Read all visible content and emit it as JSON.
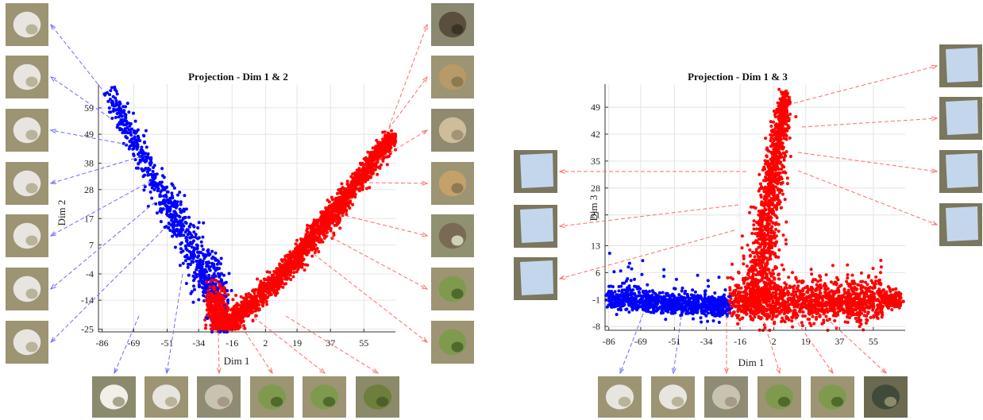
{
  "chart_data": [
    {
      "type": "scatter",
      "title": "Projection - Dim 1 & 2",
      "xlabel": "Dim 1",
      "ylabel": "Dim 2",
      "x_ticks": [
        -86,
        -69,
        -51,
        -34,
        -16,
        2,
        19,
        37,
        55
      ],
      "y_ticks": [
        -25,
        -14,
        -4,
        7,
        17,
        28,
        38,
        49,
        59
      ],
      "xlim": [
        -88,
        72
      ],
      "ylim": [
        -26,
        68
      ],
      "grid": true,
      "series": [
        {
          "color": "#0000ff",
          "shape": "diagonal-arm-down",
          "from": [
            -82,
            64
          ],
          "to": [
            -22,
            -18
          ],
          "count": 900
        },
        {
          "color": "#ff0000",
          "shape": "v-fan",
          "from": [
            -22,
            -25
          ],
          "to": [
            70,
            49
          ],
          "count": 2600
        }
      ],
      "thumbnails_left": [
        "flower-1",
        "flower-2",
        "flower-3",
        "flower-4",
        "flower-5",
        "flower-6",
        "flower-7"
      ],
      "thumbnails_right": [
        "bark-1",
        "debris-1",
        "straw-1",
        "soil-1",
        "twig-1",
        "leaf-1",
        "leaf-2"
      ],
      "thumbnails_bottom": [
        "petal-1",
        "flower-8",
        "stem-1",
        "leaf-3",
        "leaf-4",
        "grass-1"
      ]
    },
    {
      "type": "scatter",
      "title": "Projection - Dim 1 & 3",
      "xlabel": "Dim 1",
      "ylabel": "Dim 3",
      "x_ticks": [
        -86,
        -69,
        -51,
        -34,
        -16,
        2,
        19,
        37,
        55
      ],
      "y_ticks": [
        -8,
        -1,
        6,
        13,
        21,
        28,
        35,
        42,
        49
      ],
      "xlim": [
        -88,
        72
      ],
      "ylim": [
        -9,
        55
      ],
      "grid": true,
      "series": [
        {
          "color": "#0000ff",
          "shape": "horizontal-band",
          "from": [
            -86,
            -1
          ],
          "to": [
            -22,
            -3
          ],
          "count": 900
        },
        {
          "color": "#ff0000",
          "shape": "spike-and-band",
          "from": [
            -22,
            -3
          ],
          "to": [
            8,
            52
          ],
          "count": 2600
        }
      ],
      "thumbnails_left": [
        "sky-1",
        "sky-2",
        "sky-3"
      ],
      "thumbnails_right": [
        "sky-4",
        "sky-5",
        "sky-6",
        "sky-7"
      ],
      "thumbnails_bottom": [
        "flower-9",
        "flower-10",
        "stem-2",
        "leaf-5",
        "leaf-6",
        "bird-1"
      ]
    }
  ]
}
